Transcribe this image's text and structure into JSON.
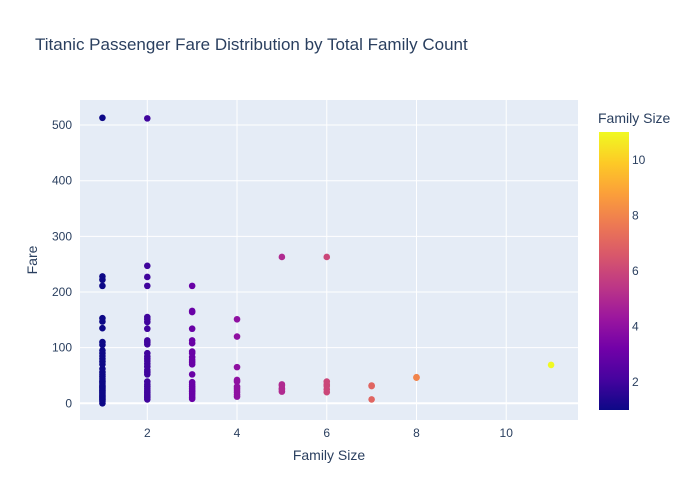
{
  "chart_data": {
    "type": "scatter",
    "title": "Titanic Passenger Fare Distribution by Total Family Count",
    "xlabel": "Family Size",
    "ylabel": "Fare",
    "xlim": [
      0.5,
      11.6
    ],
    "ylim": [
      -30,
      545
    ],
    "xticks": [
      2,
      4,
      6,
      8,
      10
    ],
    "yticks": [
      0,
      100,
      200,
      300,
      400,
      500
    ],
    "grid": true,
    "colorbar": {
      "title": "Family Size",
      "range": [
        1,
        11
      ],
      "ticks": [
        2,
        4,
        6,
        8,
        10
      ],
      "colorscale": [
        "#0d0887",
        "#46039f",
        "#7201a8",
        "#9c179e",
        "#bd3786",
        "#d8576b",
        "#ed7953",
        "#fb9f3a",
        "#fdca26",
        "#f0f921"
      ]
    },
    "points": [
      {
        "x": 1,
        "y": 0
      },
      {
        "x": 1,
        "y": 4
      },
      {
        "x": 1,
        "y": 7
      },
      {
        "x": 1,
        "y": 8
      },
      {
        "x": 1,
        "y": 10
      },
      {
        "x": 1,
        "y": 12
      },
      {
        "x": 1,
        "y": 14
      },
      {
        "x": 1,
        "y": 16
      },
      {
        "x": 1,
        "y": 18
      },
      {
        "x": 1,
        "y": 20
      },
      {
        "x": 1,
        "y": 22
      },
      {
        "x": 1,
        "y": 24
      },
      {
        "x": 1,
        "y": 26
      },
      {
        "x": 1,
        "y": 28
      },
      {
        "x": 1,
        "y": 30
      },
      {
        "x": 1,
        "y": 32
      },
      {
        "x": 1,
        "y": 35
      },
      {
        "x": 1,
        "y": 38
      },
      {
        "x": 1,
        "y": 40
      },
      {
        "x": 1,
        "y": 44
      },
      {
        "x": 1,
        "y": 48
      },
      {
        "x": 1,
        "y": 52
      },
      {
        "x": 1,
        "y": 56
      },
      {
        "x": 1,
        "y": 62
      },
      {
        "x": 1,
        "y": 70
      },
      {
        "x": 1,
        "y": 75
      },
      {
        "x": 1,
        "y": 80
      },
      {
        "x": 1,
        "y": 85
      },
      {
        "x": 1,
        "y": 90
      },
      {
        "x": 1,
        "y": 95
      },
      {
        "x": 1,
        "y": 105
      },
      {
        "x": 1,
        "y": 110
      },
      {
        "x": 1,
        "y": 135
      },
      {
        "x": 1,
        "y": 147
      },
      {
        "x": 1,
        "y": 153
      },
      {
        "x": 1,
        "y": 211
      },
      {
        "x": 1,
        "y": 222
      },
      {
        "x": 1,
        "y": 228
      },
      {
        "x": 1,
        "y": 513
      },
      {
        "x": 2,
        "y": 7
      },
      {
        "x": 2,
        "y": 10
      },
      {
        "x": 2,
        "y": 13
      },
      {
        "x": 2,
        "y": 16
      },
      {
        "x": 2,
        "y": 19
      },
      {
        "x": 2,
        "y": 22
      },
      {
        "x": 2,
        "y": 26
      },
      {
        "x": 2,
        "y": 30
      },
      {
        "x": 2,
        "y": 34
      },
      {
        "x": 2,
        "y": 39
      },
      {
        "x": 2,
        "y": 52
      },
      {
        "x": 2,
        "y": 56
      },
      {
        "x": 2,
        "y": 60
      },
      {
        "x": 2,
        "y": 66
      },
      {
        "x": 2,
        "y": 71
      },
      {
        "x": 2,
        "y": 76
      },
      {
        "x": 2,
        "y": 80
      },
      {
        "x": 2,
        "y": 84
      },
      {
        "x": 2,
        "y": 90
      },
      {
        "x": 2,
        "y": 106
      },
      {
        "x": 2,
        "y": 110
      },
      {
        "x": 2,
        "y": 113
      },
      {
        "x": 2,
        "y": 134
      },
      {
        "x": 2,
        "y": 146
      },
      {
        "x": 2,
        "y": 151
      },
      {
        "x": 2,
        "y": 155
      },
      {
        "x": 2,
        "y": 211
      },
      {
        "x": 2,
        "y": 227
      },
      {
        "x": 2,
        "y": 247
      },
      {
        "x": 2,
        "y": 512
      },
      {
        "x": 3,
        "y": 8
      },
      {
        "x": 3,
        "y": 11
      },
      {
        "x": 3,
        "y": 15
      },
      {
        "x": 3,
        "y": 18
      },
      {
        "x": 3,
        "y": 21
      },
      {
        "x": 3,
        "y": 24
      },
      {
        "x": 3,
        "y": 27
      },
      {
        "x": 3,
        "y": 30
      },
      {
        "x": 3,
        "y": 34
      },
      {
        "x": 3,
        "y": 38
      },
      {
        "x": 3,
        "y": 52
      },
      {
        "x": 3,
        "y": 70
      },
      {
        "x": 3,
        "y": 74
      },
      {
        "x": 3,
        "y": 78
      },
      {
        "x": 3,
        "y": 83
      },
      {
        "x": 3,
        "y": 90
      },
      {
        "x": 3,
        "y": 93
      },
      {
        "x": 3,
        "y": 108
      },
      {
        "x": 3,
        "y": 113
      },
      {
        "x": 3,
        "y": 134
      },
      {
        "x": 3,
        "y": 164
      },
      {
        "x": 3,
        "y": 166
      },
      {
        "x": 3,
        "y": 211
      },
      {
        "x": 4,
        "y": 12
      },
      {
        "x": 4,
        "y": 16
      },
      {
        "x": 4,
        "y": 20
      },
      {
        "x": 4,
        "y": 24
      },
      {
        "x": 4,
        "y": 27
      },
      {
        "x": 4,
        "y": 30
      },
      {
        "x": 4,
        "y": 39
      },
      {
        "x": 4,
        "y": 42
      },
      {
        "x": 4,
        "y": 65
      },
      {
        "x": 4,
        "y": 120
      },
      {
        "x": 4,
        "y": 151
      },
      {
        "x": 5,
        "y": 21
      },
      {
        "x": 5,
        "y": 25
      },
      {
        "x": 5,
        "y": 27
      },
      {
        "x": 5,
        "y": 32
      },
      {
        "x": 5,
        "y": 34
      },
      {
        "x": 5,
        "y": 263
      },
      {
        "x": 6,
        "y": 20
      },
      {
        "x": 6,
        "y": 25
      },
      {
        "x": 6,
        "y": 31
      },
      {
        "x": 6,
        "y": 34
      },
      {
        "x": 6,
        "y": 39
      },
      {
        "x": 6,
        "y": 263
      },
      {
        "x": 7,
        "y": 7
      },
      {
        "x": 7,
        "y": 31
      },
      {
        "x": 7,
        "y": 32
      },
      {
        "x": 8,
        "y": 46
      },
      {
        "x": 8,
        "y": 47
      },
      {
        "x": 11,
        "y": 69
      }
    ]
  }
}
